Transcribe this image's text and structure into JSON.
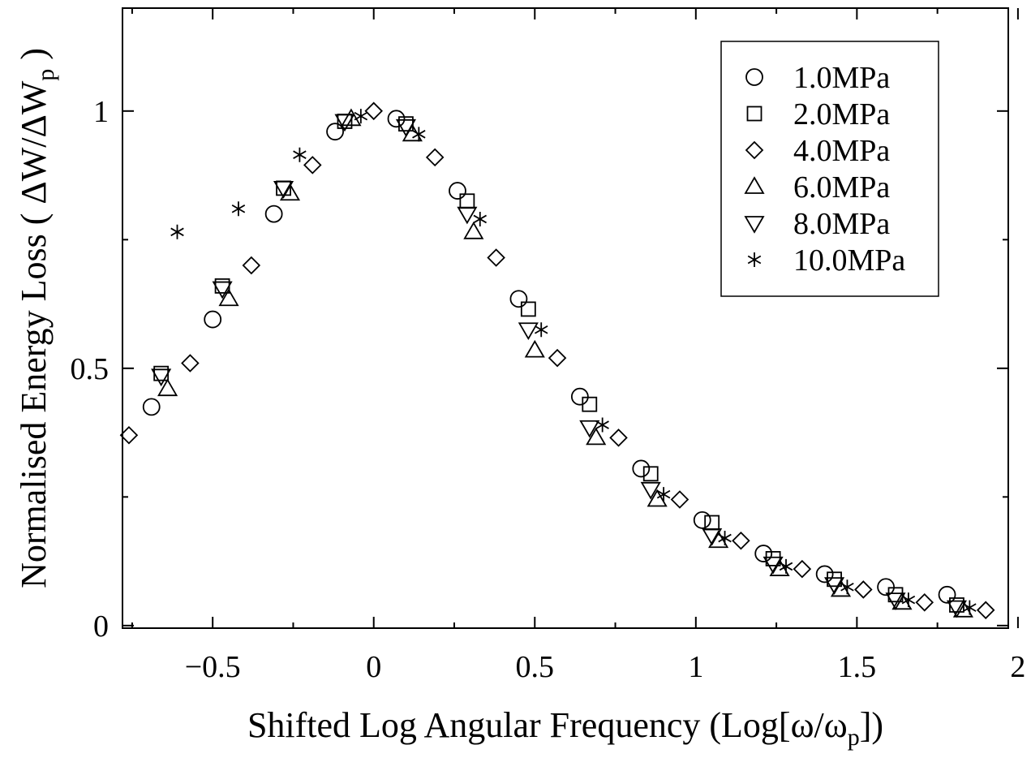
{
  "chart_data": {
    "type": "scatter",
    "xlabel": "Shifted Log Angular Frequency (Log[ω/ω_p])",
    "ylabel": "Normalised Energy Loss ( ΔW/ΔW_p )",
    "xlim": [
      -0.78,
      1.97
    ],
    "ylim": [
      -0.005,
      1.2
    ],
    "x_ticks": [
      -0.5,
      0,
      0.5,
      1,
      1.5,
      2
    ],
    "y_ticks": [
      0,
      0.5,
      1
    ],
    "x_tick_labels": [
      "−0.5",
      "0",
      "0.5",
      "1",
      "1.5",
      "2"
    ],
    "y_tick_labels": [
      "0",
      "0.5",
      "1"
    ],
    "grid": false,
    "legend_position": "top-right",
    "series": [
      {
        "name": "1.0MPa",
        "marker": "circle",
        "x": [
          -0.69,
          -0.5,
          -0.31,
          -0.12,
          0.07,
          0.26,
          0.45,
          0.64,
          0.83,
          1.02,
          1.21,
          1.4,
          1.59,
          1.78
        ],
        "y": [
          0.425,
          0.595,
          0.8,
          0.96,
          0.985,
          0.845,
          0.635,
          0.445,
          0.305,
          0.205,
          0.14,
          0.1,
          0.075,
          0.06
        ]
      },
      {
        "name": "2.0MPa",
        "marker": "square",
        "x": [
          -0.66,
          -0.47,
          -0.28,
          -0.09,
          0.1,
          0.29,
          0.48,
          0.67,
          0.86,
          1.05,
          1.24,
          1.43,
          1.62,
          1.81
        ],
        "y": [
          0.49,
          0.66,
          0.85,
          0.98,
          0.975,
          0.825,
          0.615,
          0.43,
          0.295,
          0.2,
          0.13,
          0.09,
          0.06,
          0.04
        ]
      },
      {
        "name": "4.0MPa",
        "marker": "diamond",
        "x": [
          -0.76,
          -0.57,
          -0.38,
          -0.19,
          0.0,
          0.19,
          0.38,
          0.57,
          0.76,
          0.95,
          1.14,
          1.33,
          1.52,
          1.71,
          1.9
        ],
        "y": [
          0.37,
          0.51,
          0.7,
          0.895,
          1.0,
          0.91,
          0.715,
          0.52,
          0.365,
          0.245,
          0.165,
          0.11,
          0.07,
          0.045,
          0.03
        ]
      },
      {
        "name": "6.0MPa",
        "marker": "triangle-up",
        "x": [
          -0.64,
          -0.45,
          -0.26,
          -0.07,
          0.12,
          0.31,
          0.5,
          0.69,
          0.88,
          1.07,
          1.26,
          1.45,
          1.64,
          1.83
        ],
        "y": [
          0.46,
          0.635,
          0.84,
          0.985,
          0.955,
          0.765,
          0.535,
          0.365,
          0.245,
          0.165,
          0.11,
          0.07,
          0.045,
          0.03
        ]
      },
      {
        "name": "8.0MPa",
        "marker": "triangle-down",
        "x": [
          -0.66,
          -0.47,
          -0.28,
          -0.09,
          0.1,
          0.29,
          0.48,
          0.67,
          0.86,
          1.05,
          1.24,
          1.43,
          1.62,
          1.81
        ],
        "y": [
          0.485,
          0.655,
          0.85,
          0.98,
          0.97,
          0.8,
          0.575,
          0.385,
          0.265,
          0.175,
          0.12,
          0.08,
          0.05,
          0.035
        ]
      },
      {
        "name": "10.0MPa",
        "marker": "asterisk",
        "x": [
          -0.61,
          -0.42,
          -0.23,
          -0.04,
          0.14,
          0.33,
          0.52,
          0.71,
          0.9,
          1.09,
          1.28,
          1.47,
          1.66,
          1.85
        ],
        "y": [
          0.765,
          0.81,
          0.915,
          0.99,
          0.955,
          0.79,
          0.575,
          0.39,
          0.255,
          0.17,
          0.115,
          0.075,
          0.05,
          0.035
        ]
      }
    ]
  }
}
